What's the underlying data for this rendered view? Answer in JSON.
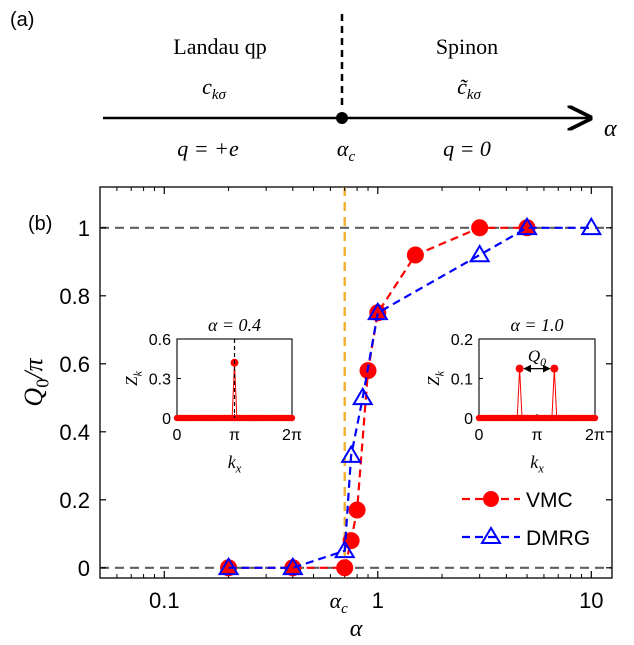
{
  "panel_a": {
    "label": "(a)",
    "left_title": "Landau qp",
    "left_operator": "c",
    "left_operator_sub": "kσ",
    "left_charge": "q = +e",
    "right_title": "Spinon",
    "right_operator": "c̃",
    "right_operator_sub": "kσ",
    "right_charge": "q = 0",
    "critical_label": "α",
    "critical_sub": "c",
    "axis_label": "α"
  },
  "panel_b": {
    "label": "(b)",
    "alpha_c_label": "α",
    "alpha_c_sub": "c"
  },
  "colors": {
    "vmc": "#ff0000",
    "dmrg": "#0000ff",
    "critical_line": "#f0b030",
    "reference_lines": "#606060"
  },
  "chart_data": [
    {
      "type": "line",
      "xscale": "log",
      "xlim": [
        0.05,
        12.5
      ],
      "ylim": [
        -0.03,
        1.12
      ],
      "xlabel": "α",
      "ylabel": "Q0/π",
      "xticks": [
        0.1,
        1,
        10
      ],
      "xtick_labels": [
        "0.1",
        "1",
        "10"
      ],
      "yticks": [
        0,
        0.2,
        0.4,
        0.6,
        0.8,
        1
      ],
      "ytick_labels": [
        "0",
        "0.2",
        "0.4",
        "0.6",
        "0.8",
        "1"
      ],
      "reference_y": [
        0,
        1
      ],
      "critical_x": 0.7,
      "legend_position": "bottom-right",
      "series": [
        {
          "name": "VMC",
          "marker": "circle",
          "x": [
            0.2,
            0.4,
            0.7,
            0.75,
            0.8,
            0.9,
            1.0,
            1.5,
            3.0,
            5.0
          ],
          "y": [
            0,
            0,
            0,
            0.08,
            0.17,
            0.58,
            0.75,
            0.92,
            1.0,
            1.0
          ]
        },
        {
          "name": "DMRG",
          "marker": "triangle",
          "x": [
            0.2,
            0.4,
            0.7,
            0.75,
            0.85,
            1.0,
            3.0,
            5.0,
            10.0
          ],
          "y": [
            0,
            0,
            0.05,
            0.33,
            0.5,
            0.75,
            0.92,
            1.0,
            1.0
          ]
        }
      ]
    },
    {
      "type": "line",
      "title": "α = 0.4",
      "xlabel": "k_x",
      "ylabel": "Z_k",
      "xlim": [
        0,
        6.283
      ],
      "ylim": [
        0,
        0.6
      ],
      "xtick_labels": [
        "0",
        "π",
        "2π"
      ],
      "ytick_labels": [
        "0",
        "0.3",
        "0.6"
      ],
      "yticks": [
        0,
        0.3,
        0.6
      ],
      "peaks": [
        {
          "x": 3.1416,
          "y": 0.42
        }
      ]
    },
    {
      "type": "line",
      "title": "α = 1.0",
      "xlabel": "k_x",
      "ylabel": "Z_k",
      "xlim": [
        0,
        6.283
      ],
      "ylim": [
        0,
        0.2
      ],
      "xtick_labels": [
        "0",
        "π",
        "2π"
      ],
      "ytick_labels": [
        "0",
        "0.1",
        "0.2"
      ],
      "yticks": [
        0,
        0.1,
        0.2
      ],
      "peaks": [
        {
          "x": 2.2,
          "y": 0.125
        },
        {
          "x": 4.08,
          "y": 0.125
        }
      ],
      "annotation": "Q0"
    }
  ]
}
